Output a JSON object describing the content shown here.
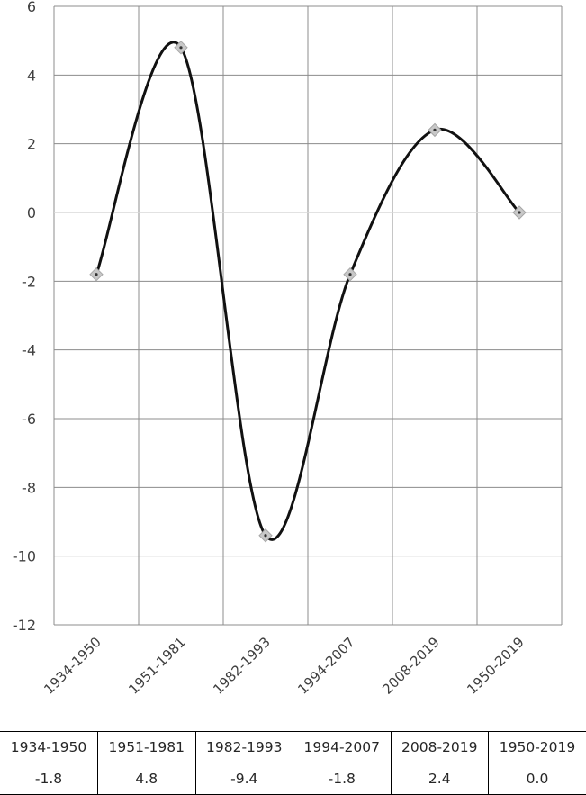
{
  "chart_data": {
    "type": "line",
    "categories": [
      "1934-1950",
      "1951-1981",
      "1982-1993",
      "1994-2007",
      "2008-2019",
      "1950-2019"
    ],
    "values": [
      -1.8,
      4.8,
      -9.4,
      -1.8,
      2.4,
      0.0
    ],
    "yticks": [
      6,
      4,
      2,
      0,
      -2,
      -4,
      -6,
      -8,
      -10,
      -12
    ],
    "ylim": [
      -12,
      6
    ],
    "grid": true,
    "smooth": true,
    "line_color": "#111111",
    "marker_color": "#c8c8c8",
    "title": "",
    "xlabel": "",
    "ylabel": ""
  },
  "table": {
    "headers": [
      "1934-1950",
      "1951-1981",
      "1982-1993",
      "1994-2007",
      "2008-2019",
      "1950-2019"
    ],
    "values": [
      "-1.8",
      "4.8",
      "-9.4",
      "-1.8",
      "2.4",
      "0.0"
    ]
  }
}
